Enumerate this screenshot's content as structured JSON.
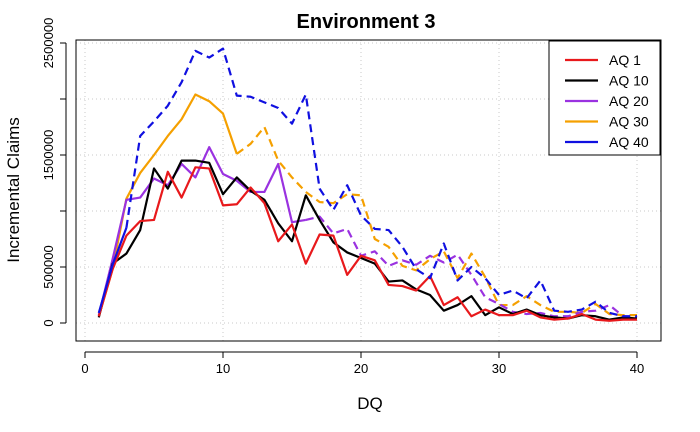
{
  "chart_data": {
    "type": "line",
    "title": "Environment 3",
    "xlabel": "DQ",
    "ylabel": "Incremental Claims",
    "xlim": [
      0,
      41
    ],
    "ylim": [
      -50000,
      2500000
    ],
    "xticks": [
      0,
      10,
      20,
      30,
      40
    ],
    "yticks": [
      0,
      500000,
      1500000,
      2500000
    ],
    "ytick_labels": [
      "0",
      "500000",
      "1500000",
      "2500000"
    ],
    "grid": true,
    "legend_position": "top-right",
    "colors": {
      "AQ 1": "#e8191c",
      "AQ 10": "#000000",
      "AQ 20": "#9a32e0",
      "AQ 30": "#f5a000",
      "AQ 40": "#1010e0"
    },
    "series": [
      {
        "name": "AQ 1",
        "x": [
          1,
          2,
          3,
          4,
          5,
          6,
          7,
          8,
          9,
          10,
          11,
          12,
          13,
          14,
          15,
          16,
          17,
          18,
          19,
          20,
          21,
          22,
          23,
          24,
          25,
          26,
          27,
          28,
          29,
          30,
          31,
          32,
          33,
          34,
          35,
          36,
          37,
          38,
          39,
          40
        ],
        "values": [
          60000,
          480000,
          780000,
          910000,
          920000,
          1350000,
          1120000,
          1390000,
          1380000,
          1050000,
          1060000,
          1210000,
          1070000,
          730000,
          880000,
          530000,
          790000,
          780000,
          430000,
          600000,
          560000,
          340000,
          330000,
          290000,
          420000,
          160000,
          230000,
          60000,
          120000,
          70000,
          70000,
          110000,
          50000,
          30000,
          40000,
          80000,
          30000,
          20000,
          30000,
          30000
        ],
        "solid_until": 40
      },
      {
        "name": "AQ 10",
        "x": [
          1,
          2,
          3,
          4,
          5,
          6,
          7,
          8,
          9,
          10,
          11,
          12,
          13,
          14,
          15,
          16,
          17,
          18,
          19,
          20,
          21,
          22,
          23,
          24,
          25,
          26,
          27,
          28,
          29,
          30,
          31,
          32,
          33,
          34,
          35,
          36,
          37,
          38,
          39,
          40
        ],
        "values": [
          50000,
          530000,
          620000,
          830000,
          1380000,
          1200000,
          1450000,
          1450000,
          1430000,
          1150000,
          1300000,
          1180000,
          1100000,
          890000,
          730000,
          1140000,
          920000,
          720000,
          630000,
          580000,
          530000,
          370000,
          380000,
          300000,
          250000,
          110000,
          160000,
          240000,
          70000,
          140000,
          80000,
          120000,
          70000,
          50000,
          40000,
          70000,
          60000,
          30000,
          50000,
          40000
        ],
        "solid_until": 40
      },
      {
        "name": "AQ 20",
        "x": [
          1,
          2,
          3,
          4,
          5,
          6,
          7,
          8,
          9,
          10,
          11,
          12,
          13,
          14,
          15,
          16,
          17,
          18,
          19,
          20,
          21,
          22,
          23,
          24,
          25,
          26,
          27,
          28,
          29,
          30,
          31,
          32,
          33,
          34,
          35,
          36,
          37,
          38,
          39,
          40
        ],
        "values": [
          70000,
          570000,
          1100000,
          1120000,
          1290000,
          1230000,
          1420000,
          1300000,
          1570000,
          1330000,
          1270000,
          1170000,
          1170000,
          1420000,
          900000,
          920000,
          950000,
          800000,
          840000,
          600000,
          640000,
          510000,
          560000,
          520000,
          600000,
          540000,
          610000,
          430000,
          230000,
          170000,
          100000,
          80000,
          90000,
          60000,
          60000,
          100000,
          110000,
          160000,
          60000,
          50000
        ],
        "solid_until": 16
      },
      {
        "name": "AQ 30",
        "x": [
          1,
          2,
          3,
          4,
          5,
          6,
          7,
          8,
          9,
          10,
          11,
          12,
          13,
          14,
          15,
          16,
          17,
          18,
          19,
          20,
          21,
          22,
          23,
          24,
          25,
          26,
          27,
          28,
          29,
          30,
          31,
          32,
          33,
          34,
          35,
          36,
          37,
          38,
          39,
          40
        ],
        "values": [
          60000,
          480000,
          1110000,
          1340000,
          1500000,
          1670000,
          1820000,
          2040000,
          1980000,
          1870000,
          1510000,
          1600000,
          1750000,
          1450000,
          1300000,
          1170000,
          1080000,
          1070000,
          1150000,
          1140000,
          750000,
          680000,
          510000,
          470000,
          570000,
          640000,
          400000,
          620000,
          410000,
          160000,
          160000,
          240000,
          160000,
          100000,
          100000,
          90000,
          170000,
          80000,
          70000,
          70000
        ],
        "solid_until": 11
      },
      {
        "name": "AQ 40",
        "x": [
          1,
          2,
          3,
          4,
          5,
          6,
          7,
          8,
          9,
          10,
          11,
          12,
          13,
          14,
          15,
          16,
          17,
          18,
          19,
          20,
          21,
          22,
          23,
          24,
          25,
          26,
          27,
          28,
          29,
          30,
          31,
          32,
          33,
          34,
          35,
          36,
          37,
          38,
          39,
          40
        ],
        "values": [
          90000,
          520000,
          850000,
          1670000,
          1800000,
          1940000,
          2150000,
          2430000,
          2370000,
          2450000,
          2030000,
          2020000,
          1970000,
          1920000,
          1780000,
          2040000,
          1200000,
          1010000,
          1230000,
          960000,
          840000,
          830000,
          680000,
          480000,
          400000,
          710000,
          380000,
          500000,
          400000,
          250000,
          290000,
          220000,
          380000,
          110000,
          100000,
          120000,
          190000,
          90000,
          60000,
          60000
        ],
        "solid_until": 3
      }
    ]
  }
}
